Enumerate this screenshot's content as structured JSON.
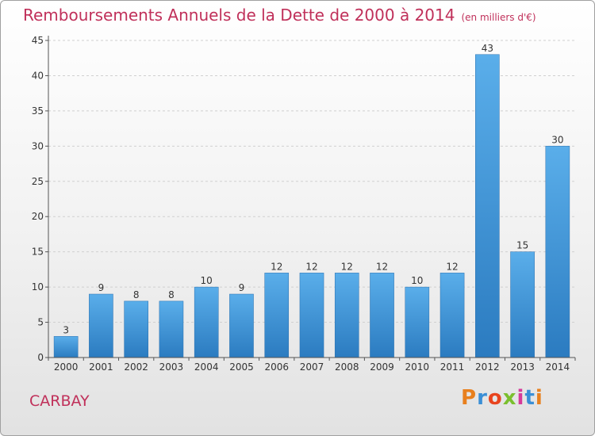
{
  "header": {
    "title": "Remboursements Annuels de la Dette de 2000 à 2014",
    "unit": "(en milliers d'€)"
  },
  "footer": {
    "place": "CARBAY",
    "logo": "Proxiti",
    "logo_colors": [
      "#e8801e",
      "#3a8fd6",
      "#e8441e",
      "#7abf2e",
      "#d63a9a",
      "#3a8fd6",
      "#e8801e"
    ]
  },
  "colors": {
    "title": "#c0305a",
    "bar_top": "#5aaeea",
    "bar_bottom": "#2b7bc0",
    "grid": "#d0d0d0",
    "axis": "#555555"
  },
  "chart_data": {
    "type": "bar",
    "title": "Remboursements Annuels de la Dette de 2000 à 2014",
    "subtitle": "(en milliers d'€)",
    "xlabel": "",
    "ylabel": "",
    "categories": [
      "2000",
      "2001",
      "2002",
      "2003",
      "2004",
      "2005",
      "2006",
      "2007",
      "2008",
      "2009",
      "2010",
      "2011",
      "2012",
      "2013",
      "2014"
    ],
    "values": [
      3,
      9,
      8,
      8,
      10,
      9,
      12,
      12,
      12,
      12,
      10,
      12,
      43,
      15,
      30
    ],
    "ylim": [
      0,
      45
    ],
    "yticks": [
      0,
      5,
      10,
      15,
      20,
      25,
      30,
      35,
      40,
      45
    ],
    "grid": true,
    "data_labels": true
  }
}
